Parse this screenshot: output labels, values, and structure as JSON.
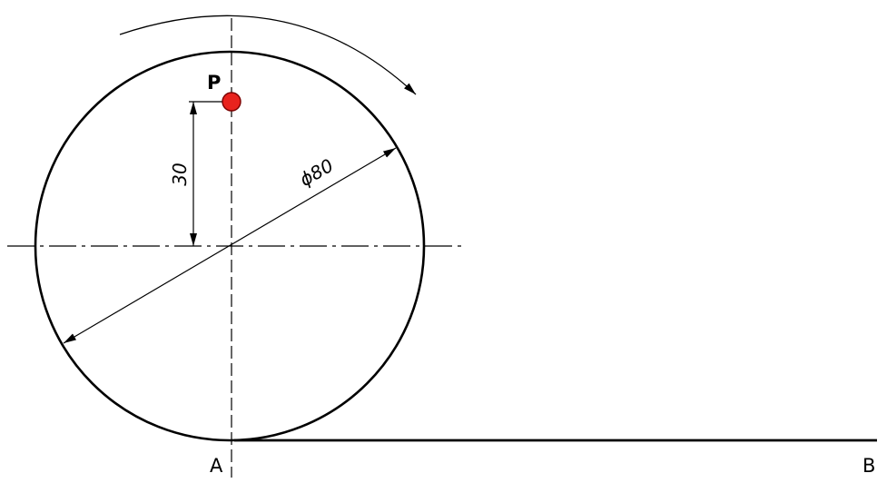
{
  "labels": {
    "point_p": "P",
    "point_a": "A",
    "point_b": "B"
  },
  "dimensions": {
    "offset": "30",
    "diameter": "ϕ80"
  },
  "colors": {
    "line": "#000000",
    "point_fill": "#e8231e",
    "point_stroke": "#7a0000"
  }
}
